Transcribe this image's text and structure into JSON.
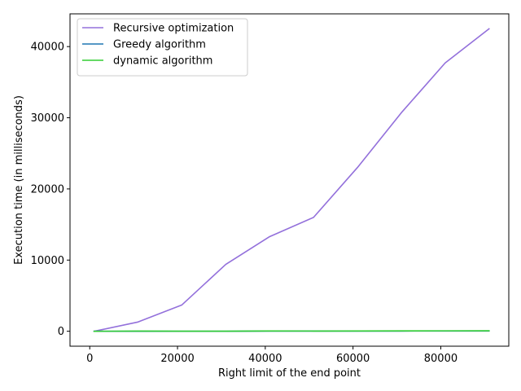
{
  "chart_data": {
    "type": "line",
    "title": "",
    "xlabel": "Right limit of the end point",
    "ylabel": "Execution time (in milliseconds)",
    "xlim": [
      -4500,
      95500
    ],
    "ylim": [
      -2100,
      44600
    ],
    "xticks": [
      0,
      20000,
      40000,
      60000,
      80000
    ],
    "yticks": [
      0,
      10000,
      20000,
      30000,
      40000
    ],
    "x": [
      1000,
      11000,
      21000,
      31000,
      41000,
      51000,
      61000,
      71000,
      81000,
      91000
    ],
    "grid": false,
    "legend_position": "top-left",
    "series": [
      {
        "name": "Recursive optimization",
        "color": "#9370DB",
        "values": [
          0,
          1300,
          3700,
          9400,
          13300,
          16000,
          23000,
          30700,
          37700,
          42500
        ]
      },
      {
        "name": "Greedy algorithm",
        "color": "#1f77b4",
        "values": [
          0,
          0,
          0,
          0,
          20,
          20,
          20,
          30,
          40,
          40
        ]
      },
      {
        "name": "dynamic algorithm",
        "color": "#32CD32",
        "values": [
          0,
          20,
          10,
          10,
          40,
          30,
          40,
          50,
          60,
          70
        ]
      }
    ]
  }
}
